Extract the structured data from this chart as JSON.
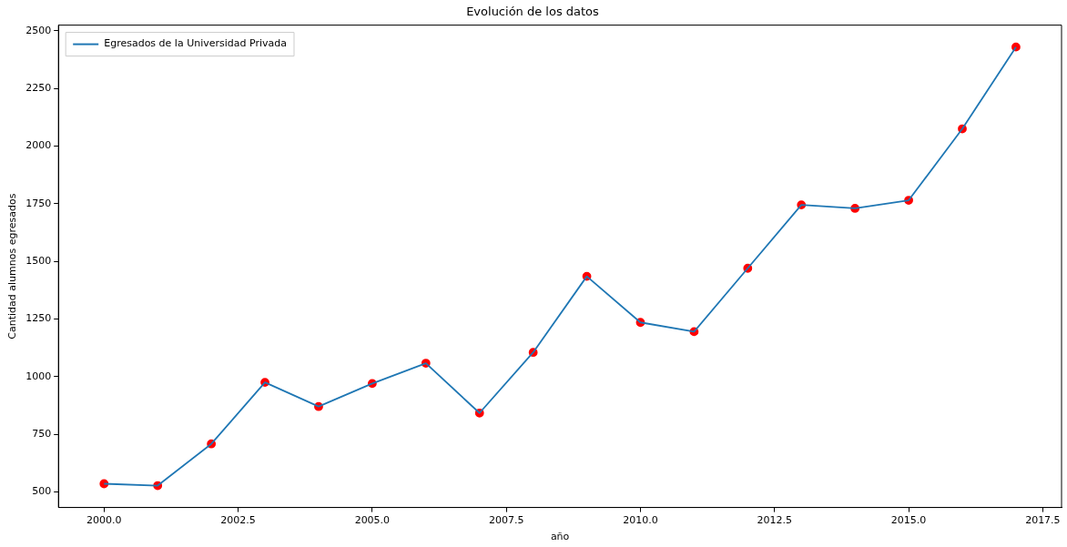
{
  "chart_data": {
    "type": "line",
    "title": "Evolución de los datos",
    "xlabel": "año",
    "ylabel": "Cantidad alumnos egresados",
    "x": [
      2000,
      2001,
      2002,
      2003,
      2004,
      2005,
      2006,
      2007,
      2008,
      2009,
      2010,
      2011,
      2012,
      2013,
      2014,
      2015,
      2016,
      2017
    ],
    "series": [
      {
        "name": "Egresados de la Universidad Privada",
        "color": "#1f77b4",
        "marker": "none",
        "values": [
          535,
          527,
          708,
          975,
          870,
          970,
          1058,
          842,
          1105,
          1435,
          1235,
          1195,
          1470,
          1745,
          1730,
          1765,
          2075,
          2430
        ]
      },
      {
        "color": "#ff0000",
        "type": "scatter",
        "marker": "circle",
        "values": [
          535,
          527,
          708,
          975,
          870,
          970,
          1058,
          842,
          1105,
          1435,
          1235,
          1195,
          1470,
          1745,
          1730,
          1765,
          2075,
          2430
        ]
      }
    ],
    "xlim": [
      1999.15,
      2017.85
    ],
    "xticks": [
      {
        "value": 2000,
        "label": "2000.0"
      },
      {
        "value": 2002.5,
        "label": "2002.5"
      },
      {
        "value": 2005,
        "label": "2005.0"
      },
      {
        "value": 2007.5,
        "label": "2007.5"
      },
      {
        "value": 2010,
        "label": "2010.0"
      },
      {
        "value": 2012.5,
        "label": "2012.5"
      },
      {
        "value": 2015,
        "label": "2015.0"
      },
      {
        "value": 2017.5,
        "label": "2017.5"
      }
    ],
    "ylim": [
      432,
      2525
    ],
    "yticks": [
      500,
      750,
      1000,
      1250,
      1500,
      1750,
      2000,
      2250,
      2500
    ],
    "grid": false,
    "legend": "top left"
  }
}
